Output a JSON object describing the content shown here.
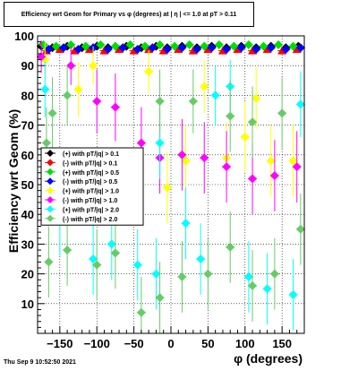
{
  "chart_data": {
    "type": "scatter",
    "title": "Efficiency wrt Geom for Primary vs φ (degrees) at | η | <= 1.0 at pT > 0.11",
    "xlabel": "φ (degrees)",
    "ylabel": "Efficiency wrt Geom (%)",
    "xlim": [
      -180,
      180
    ],
    "ylim": [
      0,
      100
    ],
    "xticks": [
      -150,
      -100,
      -50,
      0,
      50,
      100,
      150
    ],
    "yticks": [
      10,
      20,
      30,
      40,
      50,
      60,
      70,
      80,
      90,
      100
    ],
    "grid": true,
    "legend_position": "middle-left",
    "series": [
      {
        "name": "(+) with pT/|q| > 0.1",
        "color": "#000000",
        "marker": "circle",
        "points": [
          [
            -175,
            96.5
          ],
          [
            -160,
            96
          ],
          [
            -140,
            96.5
          ],
          [
            -120,
            96
          ],
          [
            -100,
            96.5
          ],
          [
            -85,
            96
          ],
          [
            -60,
            96.5
          ],
          [
            -40,
            96
          ],
          [
            -20,
            96.5
          ],
          [
            -5,
            96
          ],
          [
            15,
            96.5
          ],
          [
            35,
            96
          ],
          [
            55,
            96.5
          ],
          [
            75,
            96
          ],
          [
            95,
            96.5
          ],
          [
            115,
            96
          ],
          [
            135,
            96.5
          ],
          [
            155,
            96
          ],
          [
            172,
            96.5
          ]
        ]
      },
      {
        "name": "(-) with pT/|q| > 0.1",
        "color": "#ff0000",
        "marker": "triangle",
        "points": [
          [
            -168,
            95
          ],
          [
            -150,
            95.5
          ],
          [
            -130,
            95
          ],
          [
            -110,
            95.5
          ],
          [
            -90,
            95
          ],
          [
            -70,
            95.5
          ],
          [
            -50,
            95
          ],
          [
            -30,
            95.5
          ],
          [
            -10,
            95
          ],
          [
            10,
            95.5
          ],
          [
            30,
            95
          ],
          [
            50,
            95.5
          ],
          [
            70,
            95
          ],
          [
            90,
            95.5
          ],
          [
            110,
            95
          ],
          [
            130,
            95.5
          ],
          [
            150,
            95
          ],
          [
            170,
            95.5
          ]
        ]
      },
      {
        "name": "(+) with pT/|q| > 0.5",
        "color": "#00dd00",
        "marker": "circle",
        "points": [
          [
            -172,
            97
          ],
          [
            -155,
            96.5
          ],
          [
            -135,
            97
          ],
          [
            -115,
            96.5
          ],
          [
            -95,
            97
          ],
          [
            -75,
            96.5
          ],
          [
            -55,
            97
          ],
          [
            -35,
            96.5
          ],
          [
            -15,
            97
          ],
          [
            5,
            96.5
          ],
          [
            25,
            97
          ],
          [
            45,
            96.5
          ],
          [
            65,
            97
          ],
          [
            85,
            96.5
          ],
          [
            105,
            97
          ],
          [
            125,
            96.5
          ],
          [
            145,
            97
          ],
          [
            165,
            96.5
          ]
        ]
      },
      {
        "name": "(-) with pT/|q| > 0.5",
        "color": "#0000ff",
        "marker": "circle",
        "points": [
          [
            -165,
            95.5
          ],
          [
            -145,
            96
          ],
          [
            -125,
            95.5
          ],
          [
            -105,
            96
          ],
          [
            -85,
            95.5
          ],
          [
            -65,
            96
          ],
          [
            -45,
            95.5
          ],
          [
            -25,
            96
          ],
          [
            -5,
            95.5
          ],
          [
            15,
            96
          ],
          [
            35,
            95.5
          ],
          [
            55,
            96
          ],
          [
            75,
            95.5
          ],
          [
            95,
            96
          ],
          [
            115,
            95.5
          ],
          [
            135,
            96
          ],
          [
            155,
            95.5
          ],
          [
            175,
            96
          ]
        ]
      },
      {
        "name": "(+) with pT/|q| > 1.0",
        "color": "#ffff00",
        "marker": "circle",
        "points": [
          [
            -170,
            92
          ],
          [
            -125,
            82
          ],
          [
            -105,
            90
          ],
          [
            -30,
            88
          ],
          [
            -5,
            49
          ],
          [
            20,
            58
          ],
          [
            45,
            83
          ],
          [
            75,
            59
          ],
          [
            100,
            66
          ],
          [
            115,
            79
          ],
          [
            135,
            58
          ],
          [
            165,
            58
          ]
        ]
      },
      {
        "name": "(-) with pT/|q| > 1.0",
        "color": "#ff00ff",
        "marker": "circle",
        "points": [
          [
            -175,
            93
          ],
          [
            -135,
            90
          ],
          [
            -100,
            78
          ],
          [
            -75,
            76
          ],
          [
            -40,
            64
          ],
          [
            -15,
            59
          ],
          [
            15,
            60
          ],
          [
            45,
            59
          ],
          [
            75,
            56
          ],
          [
            110,
            52
          ],
          [
            140,
            53
          ],
          [
            170,
            56
          ]
        ]
      },
      {
        "name": "(+) with pT/|q| > 2.0",
        "color": "#00ffff",
        "marker": "circle",
        "points": [
          [
            -170,
            82
          ],
          [
            -150,
            38
          ],
          [
            -105,
            25
          ],
          [
            -80,
            30
          ],
          [
            -45,
            23
          ],
          [
            -20,
            20
          ],
          [
            -15,
            64
          ],
          [
            20,
            37
          ],
          [
            40,
            25
          ],
          [
            60,
            80
          ],
          [
            80,
            83
          ],
          [
            105,
            19
          ],
          [
            130,
            15
          ],
          [
            165,
            13
          ],
          [
            175,
            77
          ]
        ]
      },
      {
        "name": "(-) with pT/|q| > 2.0",
        "color": "#66cc66",
        "marker": "circle",
        "points": [
          [
            -168,
            64
          ],
          [
            -165,
            24
          ],
          [
            -160,
            74
          ],
          [
            -140,
            80
          ],
          [
            -140,
            28
          ],
          [
            -100,
            23
          ],
          [
            -75,
            27
          ],
          [
            -40,
            7
          ],
          [
            -15,
            12
          ],
          [
            -15,
            78
          ],
          [
            15,
            19
          ],
          [
            30,
            78
          ],
          [
            50,
            20
          ],
          [
            80,
            73
          ],
          [
            80,
            29
          ],
          [
            110,
            71
          ],
          [
            110,
            16
          ],
          [
            140,
            20
          ],
          [
            150,
            74
          ],
          [
            175,
            35
          ]
        ]
      }
    ]
  },
  "footer": {
    "timestamp": "Thu Sep  9 10:52:50 2021"
  }
}
